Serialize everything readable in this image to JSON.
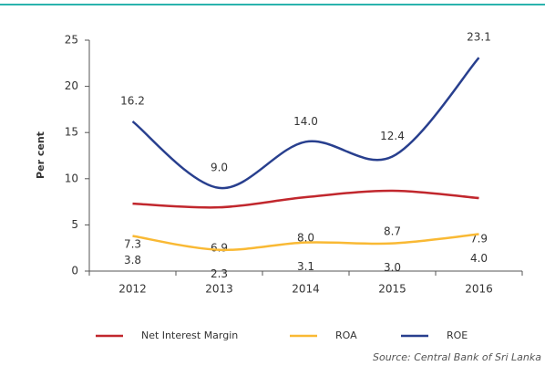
{
  "chart_data": {
    "type": "line",
    "categories": [
      "2012",
      "2013",
      "2014",
      "2015",
      "2016"
    ],
    "y_label": "Per cent",
    "series": [
      {
        "name": "Net Interest Margin",
        "color": "#c1272d",
        "values": [
          7.3,
          6.9,
          8.0,
          8.7,
          7.9
        ],
        "value_labels": [
          "7.3",
          "6.9",
          "8.0",
          "8.7",
          "7.9"
        ]
      },
      {
        "name": "ROA",
        "color": "#f9b934",
        "values": [
          3.8,
          2.3,
          3.1,
          3.0,
          4.0
        ],
        "value_labels": [
          "3.8",
          "2.3",
          "3.1",
          "3.0",
          "4.0"
        ]
      },
      {
        "name": "ROE",
        "color": "#283f8e",
        "values": [
          16.2,
          9.0,
          14.0,
          12.4,
          23.1
        ],
        "value_labels": [
          "16.2",
          "9.0",
          "14.0",
          "12.4",
          "23.1"
        ]
      }
    ],
    "ylim": [
      0,
      25
    ],
    "yticks": [
      0,
      5,
      10,
      15,
      20,
      25
    ],
    "legend": "bottom",
    "source": "Source: Central Bank of Sri Lanka"
  }
}
